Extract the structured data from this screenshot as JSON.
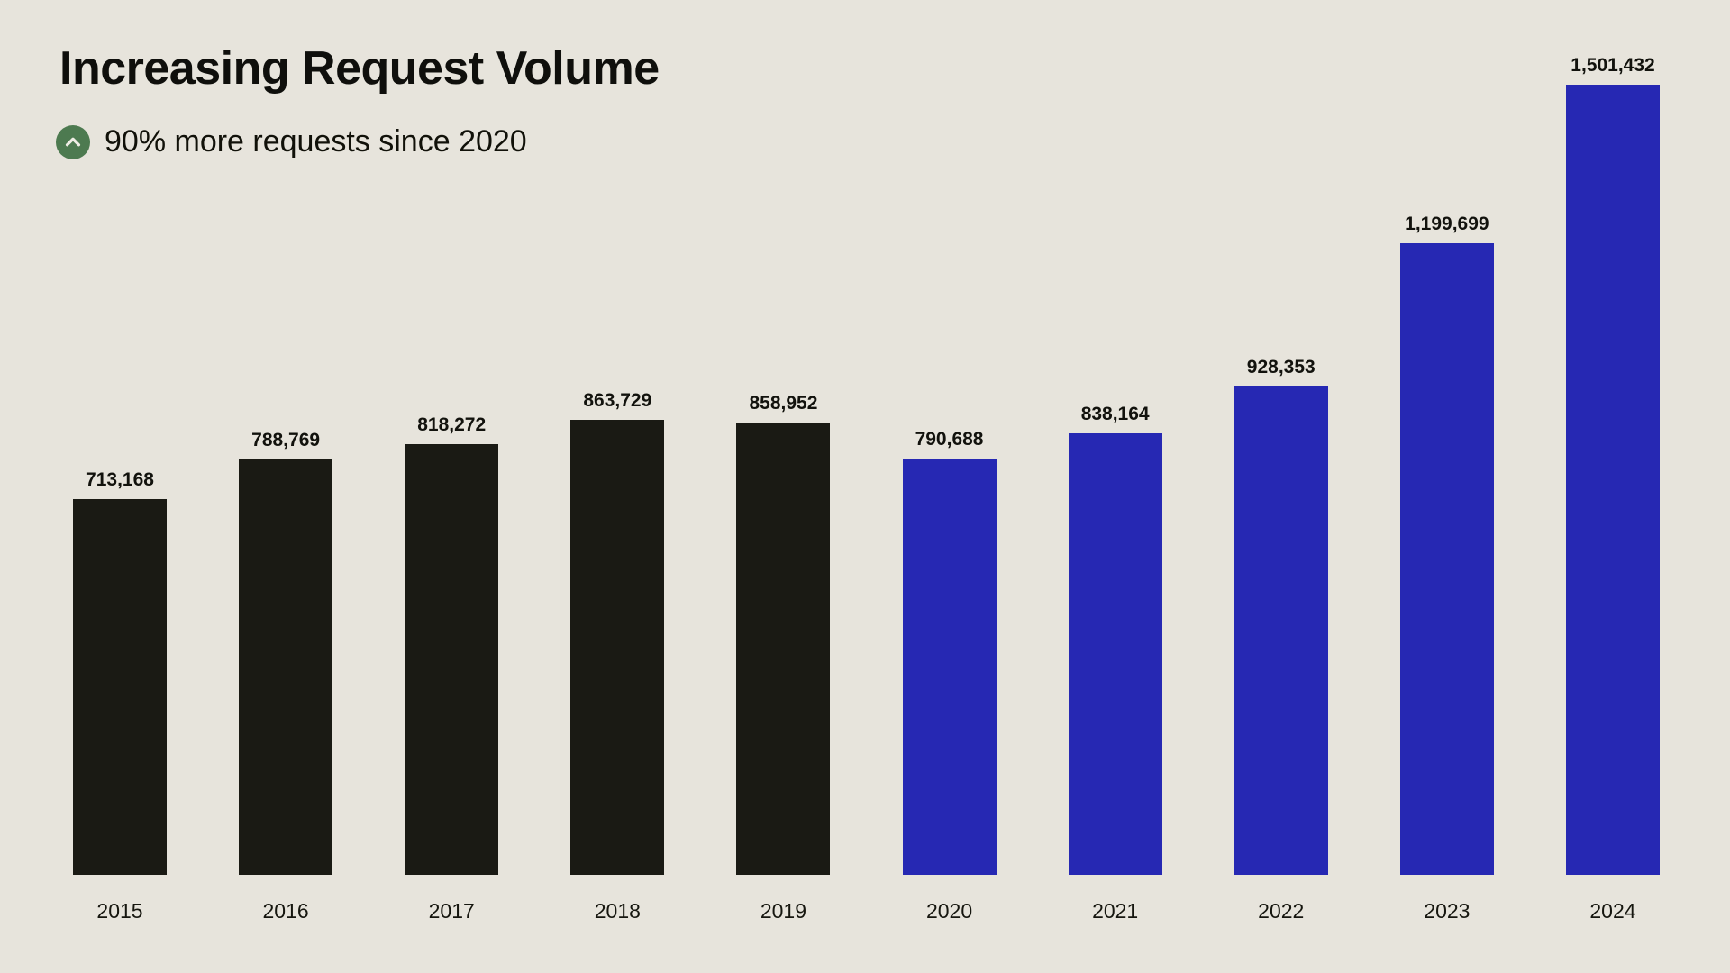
{
  "background_color": "#e7e4dc",
  "header": {
    "title": "Increasing Request Volume",
    "subtitle": "90% more requests since 2020",
    "subtitle_icon": "chevron-up-circle-icon",
    "subtitle_icon_bg": "#4d7a50",
    "subtitle_icon_glyph_color": "#efede5"
  },
  "chart_data": {
    "type": "bar",
    "title": "Increasing Request Volume",
    "subtitle": "90% more requests since 2020",
    "xlabel": "",
    "ylabel": "",
    "categories": [
      "2015",
      "2016",
      "2017",
      "2018",
      "2019",
      "2020",
      "2021",
      "2022",
      "2023",
      "2024"
    ],
    "series": [
      {
        "name": "Requests",
        "values": [
          713168,
          788769,
          818272,
          863729,
          858952,
          790688,
          838164,
          928353,
          1199699,
          1501432
        ]
      }
    ],
    "value_labels": [
      "713,168",
      "788,769",
      "818,272",
      "863,729",
      "858,952",
      "790,688",
      "838,164",
      "928,353",
      "1,199,699",
      "1,501,432"
    ],
    "bar_colors": [
      "#1a1a14",
      "#1a1a14",
      "#1a1a14",
      "#1a1a14",
      "#1a1a14",
      "#2628b3",
      "#2628b3",
      "#2628b3",
      "#2628b3",
      "#2628b3"
    ],
    "color_legend": {
      "2015-2019": "#1a1a14",
      "2020-2024": "#2628b3"
    },
    "ylim": [
      0,
      1501432
    ],
    "grid": false,
    "legend": false,
    "data_labels": true
  }
}
